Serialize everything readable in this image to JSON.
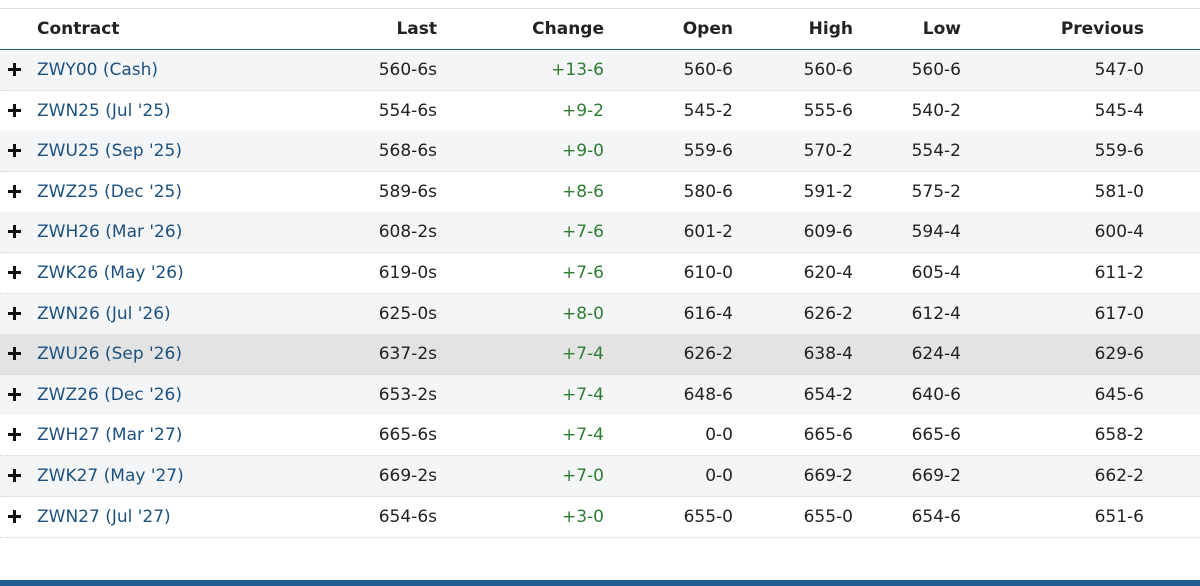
{
  "table": {
    "columns": [
      "Contract",
      "Last",
      "Change",
      "Open",
      "High",
      "Low",
      "Previous"
    ],
    "rows": [
      [
        "ZWY00 (Cash)",
        "560-6s",
        "+13-6",
        "560-6",
        "560-6",
        "560-6",
        "547-0"
      ],
      [
        "ZWN25 (Jul '25)",
        "554-6s",
        "+9-2",
        "545-2",
        "555-6",
        "540-2",
        "545-4"
      ],
      [
        "ZWU25 (Sep '25)",
        "568-6s",
        "+9-0",
        "559-6",
        "570-2",
        "554-2",
        "559-6"
      ],
      [
        "ZWZ25 (Dec '25)",
        "589-6s",
        "+8-6",
        "580-6",
        "591-2",
        "575-2",
        "581-0"
      ],
      [
        "ZWH26 (Mar '26)",
        "608-2s",
        "+7-6",
        "601-2",
        "609-6",
        "594-4",
        "600-4"
      ],
      [
        "ZWK26 (May '26)",
        "619-0s",
        "+7-6",
        "610-0",
        "620-4",
        "605-4",
        "611-2"
      ],
      [
        "ZWN26 (Jul '26)",
        "625-0s",
        "+8-0",
        "616-4",
        "626-2",
        "612-4",
        "617-0"
      ],
      [
        "ZWU26 (Sep '26)",
        "637-2s",
        "+7-4",
        "626-2",
        "638-4",
        "624-4",
        "629-6"
      ],
      [
        "ZWZ26 (Dec '26)",
        "653-2s",
        "+7-4",
        "648-6",
        "654-2",
        "640-6",
        "645-6"
      ],
      [
        "ZWH27 (Mar '27)",
        "665-6s",
        "+7-4",
        "0-0",
        "665-6",
        "665-6",
        "658-2"
      ],
      [
        "ZWK27 (May '27)",
        "669-2s",
        "+7-0",
        "0-0",
        "669-2",
        "669-2",
        "662-2"
      ],
      [
        "ZWN27 (Jul '27)",
        "654-6s",
        "+3-0",
        "655-0",
        "655-0",
        "654-6",
        "651-6"
      ]
    ]
  }
}
